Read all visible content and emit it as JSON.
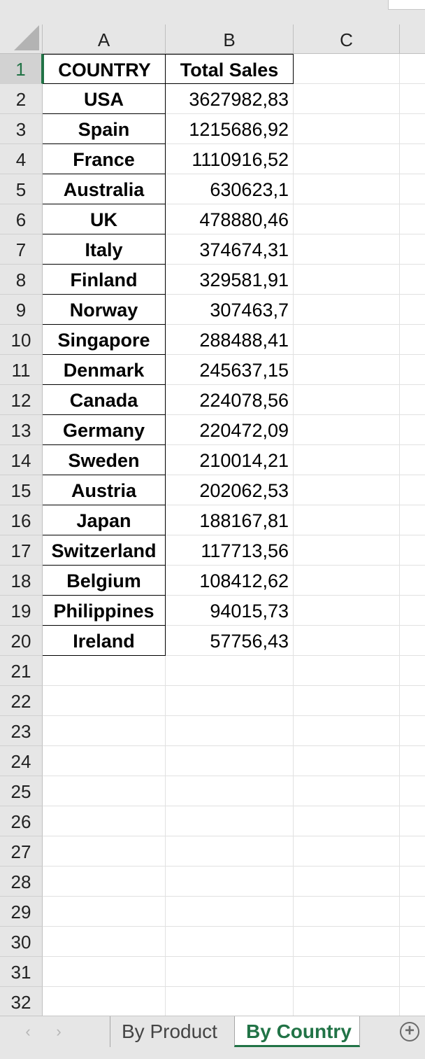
{
  "columns": [
    {
      "label": "A"
    },
    {
      "label": "B"
    },
    {
      "label": "C"
    }
  ],
  "header_row": {
    "row_number": "1",
    "a": "COUNTRY",
    "b": "Total Sales"
  },
  "rows": [
    {
      "n": "2",
      "country": "USA",
      "sales": "3627982,83"
    },
    {
      "n": "3",
      "country": "Spain",
      "sales": "1215686,92"
    },
    {
      "n": "4",
      "country": "France",
      "sales": "1110916,52"
    },
    {
      "n": "5",
      "country": "Australia",
      "sales": "630623,1"
    },
    {
      "n": "6",
      "country": "UK",
      "sales": "478880,46"
    },
    {
      "n": "7",
      "country": "Italy",
      "sales": "374674,31"
    },
    {
      "n": "8",
      "country": "Finland",
      "sales": "329581,91"
    },
    {
      "n": "9",
      "country": "Norway",
      "sales": "307463,7"
    },
    {
      "n": "10",
      "country": "Singapore",
      "sales": "288488,41"
    },
    {
      "n": "11",
      "country": "Denmark",
      "sales": "245637,15"
    },
    {
      "n": "12",
      "country": "Canada",
      "sales": "224078,56"
    },
    {
      "n": "13",
      "country": "Germany",
      "sales": "220472,09"
    },
    {
      "n": "14",
      "country": "Sweden",
      "sales": "210014,21"
    },
    {
      "n": "15",
      "country": "Austria",
      "sales": "202062,53"
    },
    {
      "n": "16",
      "country": "Japan",
      "sales": "188167,81"
    },
    {
      "n": "17",
      "country": "Switzerland",
      "sales": "117713,56"
    },
    {
      "n": "18",
      "country": "Belgium",
      "sales": "108412,62"
    },
    {
      "n": "19",
      "country": "Philippines",
      "sales": "94015,73"
    },
    {
      "n": "20",
      "country": "Ireland",
      "sales": "57756,43"
    }
  ],
  "empty_rows": [
    "21",
    "22",
    "23",
    "24",
    "25",
    "26",
    "27",
    "28",
    "29",
    "30",
    "31",
    "32"
  ],
  "tabs": {
    "prev_icon": "chevron-left-icon",
    "next_icon": "chevron-right-icon",
    "sheets": [
      {
        "label": "By Product",
        "active": false
      },
      {
        "label": "By Country",
        "active": true
      }
    ],
    "add_icon": "plus-circle-icon"
  },
  "colors": {
    "accent": "#217346",
    "header_bg": "#e6e6e6"
  }
}
